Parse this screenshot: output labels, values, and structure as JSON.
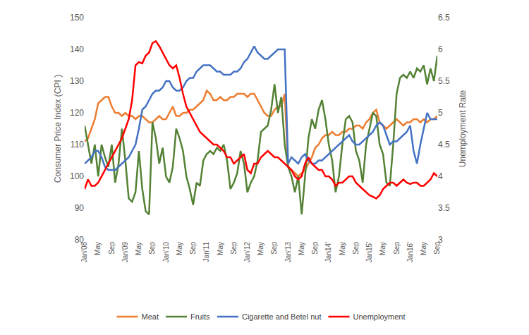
{
  "chart_data": {
    "type": "line",
    "y_label": "Consumer Price Index (CPI )",
    "y2_label": "Unemployment Rate",
    "categories": [
      "Jan'08",
      null,
      null,
      null,
      "May",
      null,
      null,
      null,
      "Sep",
      null,
      null,
      null,
      "Jan'09",
      null,
      null,
      null,
      "May",
      null,
      null,
      null,
      "Sep",
      null,
      null,
      null,
      "Jan'10",
      null,
      null,
      null,
      "May",
      null,
      null,
      null,
      "Sep",
      null,
      null,
      null,
      "Jan'11",
      null,
      null,
      null,
      "May",
      null,
      null,
      null,
      "Sep",
      null,
      null,
      null,
      "Jan'12",
      null,
      null,
      null,
      "May",
      null,
      null,
      null,
      "Sep",
      null,
      null,
      null,
      "Jan'13",
      null,
      null,
      null,
      "May",
      null,
      null,
      null,
      "Sep",
      null,
      null,
      null,
      "Jan14'",
      null,
      null,
      null,
      "May",
      null,
      null,
      null,
      "Sep",
      null,
      null,
      null,
      "Jan15'",
      null,
      null,
      null,
      "May",
      null,
      null,
      null,
      "Sep",
      null,
      null,
      null,
      "Jan16'",
      null,
      null,
      null,
      "May",
      null,
      null,
      null,
      "Sep"
    ],
    "series": [
      {
        "name": "Meat",
        "color": "#ED7D31",
        "values": [
          111,
          112,
          115,
          118,
          123,
          124,
          125,
          125,
          122,
          120,
          120,
          119,
          120,
          119,
          119,
          118,
          119,
          119,
          118,
          117,
          117,
          118,
          119,
          118,
          118,
          120,
          122,
          119,
          119,
          120,
          120,
          121,
          121,
          122,
          123,
          124,
          127,
          126,
          124,
          124,
          125,
          124,
          124,
          125,
          125,
          126,
          126,
          126,
          125,
          126,
          126,
          124,
          122,
          120,
          119,
          119,
          121,
          122,
          122,
          126,
          103,
          102,
          101,
          100,
          101,
          102,
          104,
          106,
          109,
          110,
          112,
          113,
          113,
          114,
          113,
          113,
          114,
          114,
          115,
          115,
          116,
          116,
          115,
          117,
          118,
          120,
          121,
          117,
          116,
          115,
          116,
          117,
          118,
          117,
          116,
          117,
          117,
          118,
          118,
          117,
          118,
          117,
          118,
          118,
          119
        ]
      },
      {
        "name": "Fruits",
        "color": "#548235",
        "values": [
          116,
          110,
          104,
          110,
          100,
          110,
          106,
          103,
          110,
          98,
          104,
          115,
          105,
          93,
          92,
          95,
          108,
          96,
          89,
          88,
          117,
          112,
          104,
          109,
          100,
          98,
          103,
          115,
          112,
          108,
          100,
          96,
          91,
          98,
          97,
          105,
          107,
          108,
          107,
          109,
          108,
          110,
          105,
          96,
          98,
          101,
          108,
          104,
          95,
          98,
          100,
          105,
          114,
          115,
          116,
          121,
          129,
          120,
          125,
          110,
          103,
          100,
          95,
          100,
          88,
          100,
          112,
          118,
          115,
          121,
          124,
          118,
          110,
          105,
          95,
          100,
          110,
          118,
          119,
          117,
          108,
          105,
          98,
          110,
          115,
          120,
          119,
          110,
          107,
          98,
          97,
          110,
          126,
          131,
          132,
          131,
          133,
          131,
          134,
          133,
          135,
          129,
          134,
          130,
          138
        ]
      },
      {
        "name": "Cigarette and Betel nut",
        "color": "#4472C4",
        "values": [
          104,
          105,
          106,
          108,
          108,
          106,
          103,
          102,
          102,
          102,
          103,
          104,
          105,
          106,
          108,
          110,
          115,
          121,
          122,
          124,
          126,
          127,
          127,
          128,
          130,
          130,
          128,
          127,
          127,
          128,
          130,
          131,
          131,
          133,
          134,
          135,
          135,
          135,
          134,
          133,
          133,
          132,
          132,
          132,
          133,
          133,
          134,
          136,
          137,
          139,
          141,
          139,
          138,
          137,
          137,
          138,
          139,
          140,
          140,
          140,
          104,
          106,
          105,
          104,
          106,
          107,
          105,
          104,
          104,
          105,
          105,
          106,
          107,
          108,
          109,
          110,
          111,
          112,
          113,
          111,
          110,
          110,
          111,
          112,
          113,
          114,
          116,
          117,
          116,
          113,
          110,
          111,
          111,
          112,
          113,
          114,
          116,
          108,
          104,
          110,
          115,
          120,
          118,
          118,
          118
        ]
      },
      {
        "name": "Unemployment",
        "color": "#FF0000",
        "axis": "y2",
        "values": [
          3.8,
          3.95,
          3.85,
          3.85,
          3.9,
          4.0,
          4.1,
          4.2,
          4.3,
          4.4,
          4.5,
          4.6,
          4.75,
          4.9,
          5.2,
          5.75,
          5.8,
          5.78,
          5.9,
          5.95,
          6.1,
          6.13,
          6.05,
          5.95,
          5.85,
          5.75,
          5.7,
          5.75,
          5.55,
          5.3,
          5.1,
          5.0,
          4.9,
          4.8,
          4.7,
          4.65,
          4.6,
          4.55,
          4.5,
          4.5,
          4.45,
          4.4,
          4.3,
          4.3,
          4.2,
          4.25,
          4.3,
          4.35,
          4.1,
          4.05,
          4.2,
          4.2,
          4.3,
          4.35,
          4.4,
          4.35,
          4.3,
          4.3,
          4.25,
          4.2,
          4.15,
          4.1,
          4.0,
          3.95,
          4.0,
          4.2,
          4.3,
          4.2,
          4.15,
          4.1,
          4.1,
          4.0,
          4.0,
          3.95,
          3.85,
          3.9,
          3.9,
          3.95,
          4.0,
          4.0,
          3.9,
          3.85,
          3.8,
          3.75,
          3.7,
          3.68,
          3.65,
          3.7,
          3.8,
          3.85,
          3.9,
          3.9,
          3.85,
          3.9,
          3.95,
          3.9,
          3.88,
          3.9,
          3.9,
          3.85,
          3.85,
          3.9,
          3.95,
          4.05,
          4.0
        ]
      }
    ],
    "ylim": [
      80,
      150
    ],
    "yticks": [
      80,
      90,
      100,
      110,
      120,
      130,
      140,
      150
    ],
    "y2lim": [
      3,
      6.5
    ],
    "y2ticks": [
      3,
      3.5,
      4,
      4.5,
      5,
      5.5,
      6,
      6.5
    ],
    "grid": false,
    "legend": "bottom"
  }
}
